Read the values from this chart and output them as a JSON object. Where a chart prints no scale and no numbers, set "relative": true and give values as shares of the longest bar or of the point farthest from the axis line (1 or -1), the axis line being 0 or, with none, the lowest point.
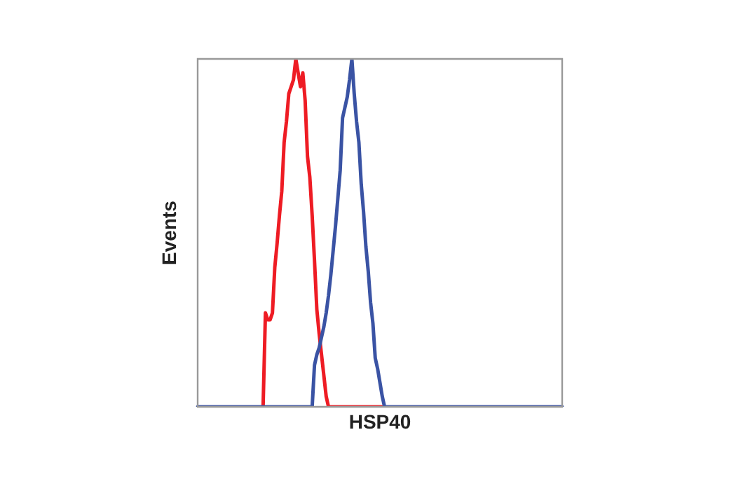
{
  "chart_data": {
    "type": "line",
    "relative": true,
    "xlabel": "HSP40",
    "ylabel": "Events",
    "marker": "none",
    "line_style": "solid",
    "categories": [
      null,
      null,
      null,
      null,
      null,
      null,
      null,
      null,
      null,
      null,
      null,
      null,
      null,
      null,
      null,
      null,
      null,
      null,
      null,
      null,
      null,
      null,
      null,
      null,
      null,
      null,
      null,
      null,
      null,
      null,
      null,
      null,
      null,
      null,
      null,
      null,
      null,
      null,
      null,
      null,
      null,
      null,
      null,
      null,
      null,
      null,
      null,
      null,
      null,
      null,
      null,
      null,
      null,
      null,
      null,
      null,
      null,
      null,
      null,
      null,
      null,
      null,
      null,
      null,
      null,
      null,
      null,
      null,
      null,
      null,
      null,
      null,
      null,
      null,
      null,
      null,
      null,
      null,
      null,
      null,
      null,
      null,
      null,
      null,
      null,
      null,
      null,
      null,
      null,
      null,
      null,
      null,
      null,
      null,
      null,
      null,
      null,
      null,
      null,
      null,
      null,
      null,
      null,
      null,
      null,
      null,
      null,
      null,
      null,
      null,
      null,
      null,
      null,
      null,
      null,
      null,
      null,
      null,
      null,
      null,
      null,
      null,
      null,
      null,
      null,
      null,
      null,
      null,
      null,
      null,
      null,
      null,
      null,
      null,
      null,
      null,
      null,
      null,
      null,
      null,
      null,
      null,
      null,
      null,
      null,
      null,
      null,
      null,
      null,
      null,
      null,
      null,
      null,
      null,
      null,
      null,
      null
    ],
    "series": [
      {
        "color": "#ee1c24",
        "values": [
          null,
          null,
          null,
          null,
          null,
          null,
          null,
          null,
          null,
          null,
          null,
          null,
          null,
          null,
          null,
          null,
          null,
          null,
          null,
          null,
          null,
          null,
          null,
          null,
          null,
          null,
          null,
          null,
          0,
          0.27,
          0.25,
          0.25,
          0.27,
          0.4,
          0.47,
          0.55,
          0.62,
          0.76,
          0.82,
          0.9,
          0.92,
          0.94,
          1,
          0.96,
          0.92,
          0.96,
          0.88,
          0.72,
          0.66,
          0.55,
          0.42,
          0.28,
          0.21,
          0.15,
          0.09,
          0.03,
          0,
          0,
          0,
          0,
          0,
          0,
          0,
          0,
          0,
          0,
          0,
          0,
          0,
          0,
          0,
          0,
          0,
          0,
          0,
          0,
          0,
          0,
          0,
          0,
          null,
          null,
          null,
          null,
          null,
          null,
          null,
          null,
          null,
          null,
          null,
          null,
          null,
          null,
          null,
          null,
          null,
          null,
          null,
          null,
          null,
          null,
          null,
          null,
          null,
          null,
          null,
          null,
          null,
          null,
          null,
          null,
          null,
          null,
          null,
          null,
          null,
          null,
          null,
          null,
          null,
          null,
          null,
          null,
          null,
          null,
          null,
          null,
          null,
          null,
          null,
          null,
          null,
          null,
          null,
          null,
          null,
          null,
          null,
          null,
          null,
          null,
          null,
          null,
          null,
          null,
          null,
          null,
          null,
          null,
          null,
          null,
          null,
          null,
          null,
          null,
          null
        ]
      },
      {
        "color": "#3a53a4",
        "values": [
          0,
          0,
          0,
          0,
          0,
          0,
          0,
          0,
          0,
          0,
          0,
          0,
          0,
          0,
          0,
          0,
          0,
          0,
          0,
          0,
          0,
          0,
          0,
          0,
          0,
          0,
          0,
          0,
          0,
          0,
          0,
          0,
          0,
          0,
          0,
          0,
          0,
          0,
          0,
          0,
          0,
          0,
          0,
          0,
          0,
          0,
          0,
          0,
          0,
          0,
          0.12,
          0.15,
          0.17,
          0.2,
          0.23,
          0.27,
          0.32,
          0.38,
          0.45,
          0.52,
          0.6,
          0.68,
          0.83,
          0.86,
          0.89,
          0.94,
          1,
          0.9,
          0.82,
          0.76,
          0.64,
          0.56,
          0.46,
          0.39,
          0.3,
          0.24,
          0.14,
          0.11,
          0.07,
          0.03,
          0,
          0,
          0,
          0,
          0,
          0,
          0,
          0,
          0,
          0,
          0,
          0,
          0,
          0,
          0,
          0,
          0,
          0,
          0,
          0,
          0,
          0,
          0,
          0,
          0,
          0,
          0,
          0,
          0,
          0,
          0,
          0,
          0,
          0,
          0,
          0,
          0,
          0,
          0,
          0,
          0,
          0,
          0,
          0,
          0,
          0,
          0,
          0,
          0,
          0,
          0,
          0,
          0,
          0,
          0,
          0,
          0,
          0,
          0,
          0,
          0,
          0,
          0,
          0,
          0,
          0,
          0,
          0,
          0,
          0,
          0,
          0,
          0,
          0,
          0,
          0,
          0
        ]
      }
    ]
  }
}
